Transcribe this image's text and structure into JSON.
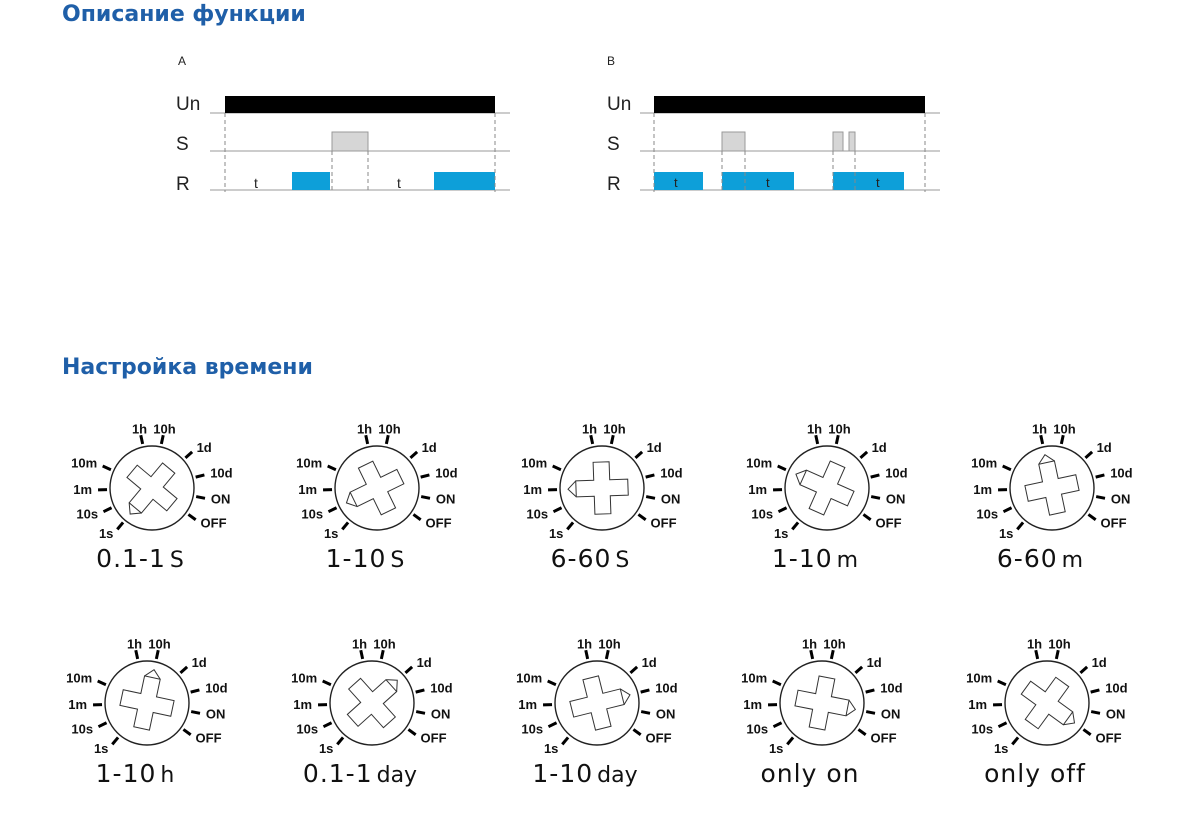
{
  "section_function": {
    "title": "Описание функции"
  },
  "section_time": {
    "title": "Настройка времени"
  },
  "diagrams": [
    {
      "id": "A",
      "label": "A",
      "rows": [
        "Un",
        "S",
        "R"
      ],
      "t_labels": [
        "t",
        "t"
      ]
    },
    {
      "id": "B",
      "label": "B",
      "rows": [
        "Un",
        "S",
        "R"
      ],
      "t_labels": [
        "t",
        "t",
        "t"
      ]
    }
  ],
  "dial_scale": [
    "1s",
    "10s",
    "1m",
    "10m",
    "1h",
    "10h",
    "1d",
    "10d",
    "ON",
    "OFF"
  ],
  "dials": [
    {
      "value": "0.1-1",
      "unit": "S",
      "pointer": "1s"
    },
    {
      "value": "1-10",
      "unit": "S",
      "pointer": "10s"
    },
    {
      "value": "6-60",
      "unit": "S",
      "pointer": "1m"
    },
    {
      "value": "1-10",
      "unit": "m",
      "pointer": "10m"
    },
    {
      "value": "6-60",
      "unit": "m",
      "pointer": "1h"
    },
    {
      "value": "1-10",
      "unit": "h",
      "pointer": "10h"
    },
    {
      "value": "0.1-1",
      "unit": "day",
      "pointer": "1d"
    },
    {
      "value": "1-10",
      "unit": "day",
      "pointer": "10d"
    },
    {
      "value": "only on",
      "unit": "",
      "pointer": "ON"
    },
    {
      "value": "only off",
      "unit": "",
      "pointer": "OFF"
    }
  ],
  "colors": {
    "title": "#1f5fa8",
    "relay_on": "#0d9fd9",
    "signal": "#d6d6d6",
    "supply": "#000000"
  }
}
